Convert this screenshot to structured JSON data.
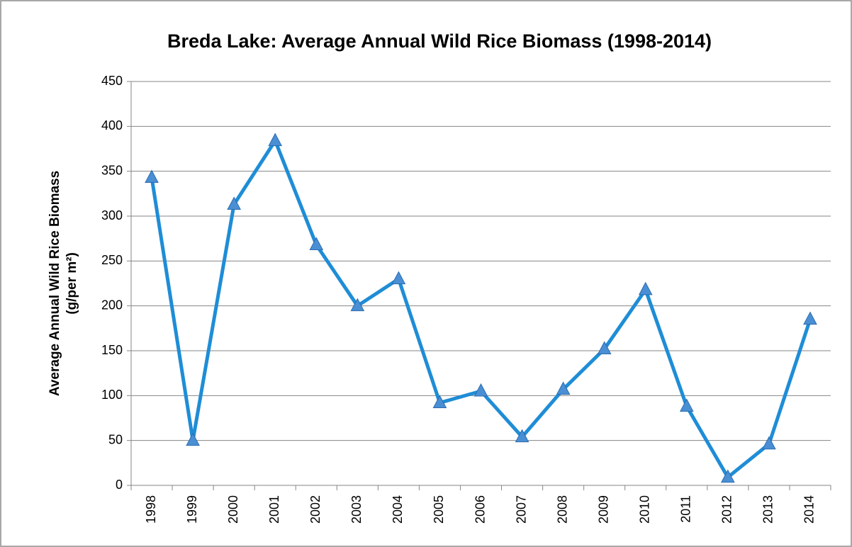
{
  "chart_data": {
    "type": "line",
    "title": "Breda Lake: Average Annual Wild Rice Biomass (1998-2014)",
    "ylabel": [
      "Average Annual Wild Rice Biomass",
      "(g/per m²)"
    ],
    "categories": [
      "1998",
      "1999",
      "2000",
      "2001",
      "2002",
      "2003",
      "2004",
      "2005",
      "2006",
      "2007",
      "2008",
      "2009",
      "2010",
      "2011",
      "2012",
      "2013",
      "2014"
    ],
    "series": [
      {
        "color": "#1f8dd6",
        "marker_color": "#4a8fd4",
        "values": [
          343,
          50,
          313,
          384,
          268,
          200,
          230,
          92,
          105,
          54,
          107,
          152,
          218,
          88,
          9,
          46,
          185
        ]
      }
    ],
    "ylim": [
      0,
      450
    ],
    "yticks": [
      0,
      50,
      100,
      150,
      200,
      250,
      300,
      350,
      400,
      450
    ],
    "grid": true
  }
}
